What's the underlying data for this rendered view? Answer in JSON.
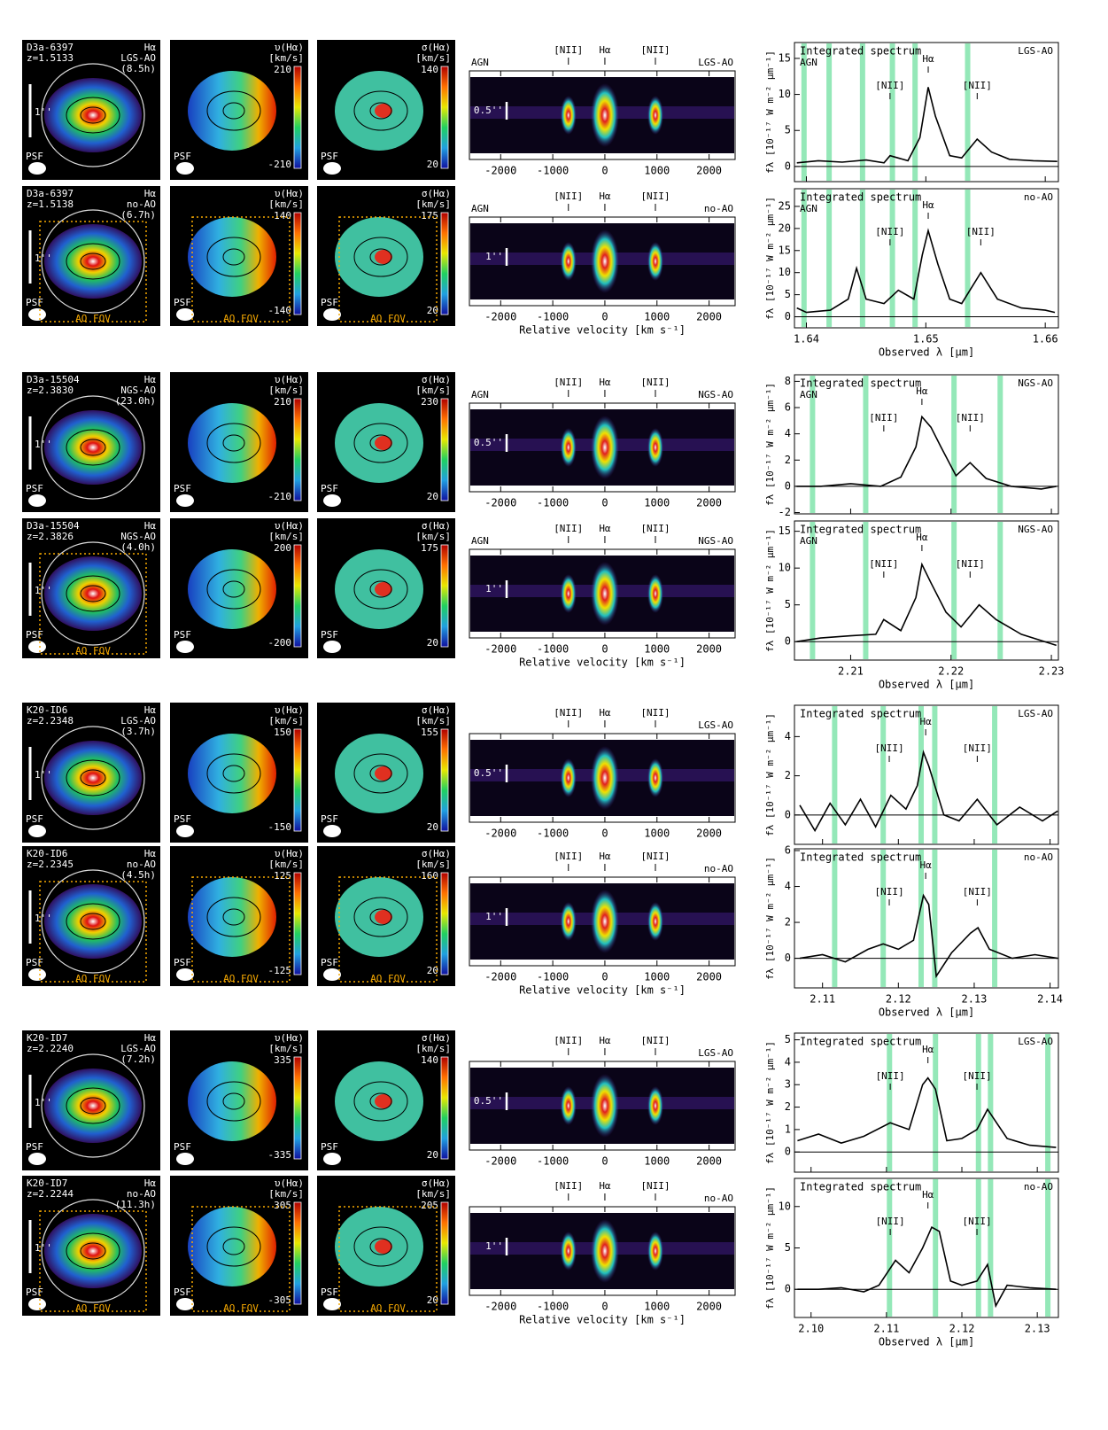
{
  "labels": {
    "pv_x": "Relative velocity  [km s⁻¹]",
    "spec_x": "Observed λ  [μm]",
    "spec_y": "fλ [10⁻¹⁷ W m⁻² μm⁻¹]"
  },
  "pv": {
    "xlim": [
      -2600,
      2500
    ],
    "xticks": [
      -2000,
      -1000,
      0,
      1000,
      2000
    ]
  },
  "groups": [
    {
      "spec_xlim": [
        1.639,
        1.6611
      ],
      "spec_xticks": [
        1.64,
        1.65,
        1.66
      ],
      "rows": [
        {
          "map": {
            "name": "D3a-6397",
            "z": "z=1.5133",
            "line": "Hα",
            "mode": "LGS-AO",
            "time": "(8.5h)",
            "scale": "1''",
            "psf": "PSF"
          },
          "vel": {
            "label": "υ(Hα)",
            "unit": "[km/s]",
            "max": 210,
            "min": -210
          },
          "disp": {
            "label": "σ(Hα)",
            "unit": "[km/s]",
            "max": 140,
            "min": 20
          },
          "pv": {
            "agn": "AGN",
            "mode": "LGS-AO",
            "lines": [
              "[NII]",
              "Hα",
              "[NII]"
            ],
            "line_vel": [
              -700,
              0,
              970
            ],
            "scale": "0.5''"
          },
          "spec": {
            "title": "Integrated spectrum",
            "agn": "AGN",
            "mode": "LGS-AO",
            "ylim": [
              -2.1,
              17.2
            ],
            "yticks": [
              0,
              5,
              10,
              15
            ],
            "lines": [
              "[NII]",
              "Hα",
              "[NII]"
            ],
            "line_x": [
              1.647,
              1.6502,
              1.6543
            ],
            "sky": [
              1.6398,
              1.6419,
              1.6447,
              1.6472,
              1.6491,
              1.6535
            ],
            "x": [
              1.6392,
              1.641,
              1.643,
              1.645,
              1.6465,
              1.647,
              1.6485,
              1.6495,
              1.6502,
              1.6508,
              1.652,
              1.653,
              1.6543,
              1.6555,
              1.657,
              1.659,
              1.661
            ],
            "y": [
              0.5,
              0.8,
              0.6,
              0.9,
              0.5,
              1.5,
              0.8,
              4,
              11,
              7,
              1.5,
              1.2,
              3.8,
              2,
              1,
              0.8,
              0.7
            ]
          }
        },
        {
          "map": {
            "name": "D3a-6397",
            "z": "z=1.5138",
            "line": "Hα",
            "mode": "no-AO",
            "time": "(6.7h)",
            "scale": "1''",
            "psf": "PSF",
            "fov": "AO FOV"
          },
          "vel": {
            "label": "υ(Hα)",
            "unit": "[km/s]",
            "max": 140,
            "min": -140,
            "fov": "AO FOV"
          },
          "disp": {
            "label": "σ(Hα)",
            "unit": "[km/s]",
            "max": 175,
            "min": 20,
            "fov": "AO FOV"
          },
          "pv": {
            "agn": "AGN",
            "mode": "no-AO",
            "lines": [
              "[NII]",
              "Hα",
              "[NII]"
            ],
            "line_vel": [
              -700,
              0,
              970
            ],
            "scale": "1''"
          },
          "spec": {
            "title": "Integrated spectrum",
            "agn": "AGN",
            "mode": "no-AO",
            "ylim": [
              -2.5,
              29
            ],
            "yticks": [
              0,
              5,
              10,
              15,
              20,
              25
            ],
            "lines": [
              "[NII]",
              "Hα",
              "[NII]"
            ],
            "line_x": [
              1.647,
              1.6502,
              1.6546
            ],
            "sky": [
              1.6398,
              1.6419,
              1.6447,
              1.6472,
              1.6491,
              1.6535
            ],
            "x": [
              1.6392,
              1.64,
              1.642,
              1.6435,
              1.6442,
              1.645,
              1.6465,
              1.6477,
              1.649,
              1.6497,
              1.6502,
              1.651,
              1.652,
              1.653,
              1.6546,
              1.656,
              1.658,
              1.66,
              1.6608
            ],
            "y": [
              2,
              1,
              1.5,
              4,
              11,
              4,
              3,
              6,
              4,
              14,
              19.5,
              12,
              4,
              3,
              10,
              4,
              2,
              1.5,
              1
            ]
          }
        }
      ]
    },
    {
      "spec_xlim": [
        2.2044,
        2.2307
      ],
      "spec_xticks": [
        2.21,
        2.22,
        2.23
      ],
      "rows": [
        {
          "map": {
            "name": "D3a-15504",
            "z": "z=2.3830",
            "line": "Hα",
            "mode": "NGS-AO",
            "time": "(23.0h)",
            "scale": "1''",
            "psf": "PSF"
          },
          "vel": {
            "label": "υ(Hα)",
            "unit": "[km/s]",
            "max": 210,
            "min": -210
          },
          "disp": {
            "label": "σ(Hα)",
            "unit": "[km/s]",
            "max": 230,
            "min": 20
          },
          "pv": {
            "agn": "AGN",
            "mode": "NGS-AO",
            "lines": [
              "[NII]",
              "Hα",
              "[NII]"
            ],
            "line_vel": [
              -700,
              0,
              970
            ],
            "scale": "0.5''"
          },
          "spec": {
            "title": "Integrated spectrum",
            "agn": "AGN",
            "mode": "NGS-AO",
            "ylim": [
              -2.1,
              8.5
            ],
            "yticks": [
              -2,
              0,
              2,
              4,
              6,
              8
            ],
            "lines": [
              "[NII]",
              "Hα",
              "[NII]"
            ],
            "line_x": [
              2.2133,
              2.2171,
              2.2219
            ],
            "sky": [
              2.2062,
              2.2115,
              2.2203,
              2.2249
            ],
            "x": [
              2.2046,
              2.207,
              2.21,
              2.213,
              2.215,
              2.2165,
              2.2171,
              2.218,
              2.219,
              2.2205,
              2.2219,
              2.2235,
              2.226,
              2.229,
              2.2305
            ],
            "y": [
              0,
              0,
              0.2,
              0,
              0.7,
              3,
              5.3,
              4.5,
              3,
              0.8,
              1.8,
              0.6,
              0,
              -0.2,
              0
            ]
          }
        },
        {
          "map": {
            "name": "D3a-15504",
            "z": "z=2.3826",
            "line": "Hα",
            "mode": "NGS-AO",
            "time": "(4.0h)",
            "scale": "1''",
            "psf": "PSF",
            "fov": "AO FOV"
          },
          "vel": {
            "label": "υ(Hα)",
            "unit": "[km/s]",
            "max": 200,
            "min": -200
          },
          "disp": {
            "label": "σ(Hα)",
            "unit": "[km/s]",
            "max": 175,
            "min": 20
          },
          "pv": {
            "agn": "AGN",
            "mode": "NGS-AO",
            "lines": [
              "[NII]",
              "Hα",
              "[NII]"
            ],
            "line_vel": [
              -700,
              0,
              970
            ],
            "scale": "1''"
          },
          "spec": {
            "title": "Integrated spectrum",
            "agn": "AGN",
            "mode": "NGS-AO",
            "ylim": [
              -2.5,
              16.4
            ],
            "yticks": [
              0,
              5,
              10,
              15
            ],
            "lines": [
              "[NII]",
              "Hα",
              "[NII]"
            ],
            "line_x": [
              2.2133,
              2.2171,
              2.2219
            ],
            "sky": [
              2.2062,
              2.2115,
              2.2203,
              2.2249
            ],
            "x": [
              2.2046,
              2.207,
              2.21,
              2.2125,
              2.2133,
              2.215,
              2.2165,
              2.2171,
              2.218,
              2.2195,
              2.221,
              2.2228,
              2.2245,
              2.227,
              2.2305
            ],
            "y": [
              0,
              0.5,
              0.8,
              1,
              3,
              1.5,
              6,
              10.5,
              8,
              4,
              2,
              5,
              3,
              1,
              -0.5
            ]
          }
        }
      ]
    },
    {
      "spec_xlim": [
        2.1063,
        2.1411
      ],
      "spec_xticks": [
        2.11,
        2.12,
        2.13,
        2.14
      ],
      "rows": [
        {
          "map": {
            "name": "K20-ID6",
            "z": "z=2.2348",
            "line": "Hα",
            "mode": "LGS-AO",
            "time": "(3.7h)",
            "scale": "1''",
            "psf": "PSF"
          },
          "vel": {
            "label": "υ(Hα)",
            "unit": "[km/s]",
            "max": 150,
            "min": -150
          },
          "disp": {
            "label": "σ(Hα)",
            "unit": "[km/s]",
            "max": 155,
            "min": 20
          },
          "pv": {
            "mode": "LGS-AO",
            "lines": [
              "[NII]",
              "Hα",
              "[NII]"
            ],
            "line_vel": [
              -700,
              0,
              970
            ],
            "scale": "0.5''"
          },
          "spec": {
            "title": "Integrated spectrum",
            "mode": "LGS-AO",
            "ylim": [
              -1.5,
              5.6
            ],
            "yticks": [
              0,
              2,
              4
            ],
            "lines": [
              "[NII]",
              "Hα",
              "[NII]"
            ],
            "line_x": [
              2.1188,
              2.1236,
              2.1304
            ],
            "sky": [
              2.1116,
              2.118,
              2.123,
              2.1248,
              2.1327
            ],
            "x": [
              2.107,
              2.109,
              2.111,
              2.113,
              2.115,
              2.117,
              2.119,
              2.121,
              2.1225,
              2.1233,
              2.124,
              2.126,
              2.128,
              2.1304,
              2.133,
              2.136,
              2.139,
              2.141
            ],
            "y": [
              0.5,
              -0.8,
              0.6,
              -0.5,
              0.8,
              -0.6,
              1,
              0.3,
              1.5,
              3.2,
              2.5,
              0,
              -0.3,
              0.8,
              -0.5,
              0.4,
              -0.3,
              0.2
            ]
          }
        },
        {
          "map": {
            "name": "K20-ID6",
            "z": "z=2.2345",
            "line": "Hα",
            "mode": "no-AO",
            "time": "(4.5h)",
            "scale": "1''",
            "psf": "PSF",
            "fov": "AO FOV"
          },
          "vel": {
            "label": "υ(Hα)",
            "unit": "[km/s]",
            "max": 125,
            "min": -125,
            "fov": "AO FOV"
          },
          "disp": {
            "label": "σ(Hα)",
            "unit": "[km/s]",
            "max": 160,
            "min": 20,
            "fov": "AO FOV"
          },
          "pv": {
            "mode": "no-AO",
            "lines": [
              "[NII]",
              "Hα",
              "[NII]"
            ],
            "line_vel": [
              -700,
              0,
              970
            ],
            "scale": "1''"
          },
          "spec": {
            "title": "Integrated spectrum",
            "mode": "no-AO",
            "ylim": [
              -1.65,
              6.1
            ],
            "yticks": [
              0,
              2,
              4,
              6
            ],
            "lines": [
              "[NII]",
              "Hα",
              "[NII]"
            ],
            "line_x": [
              2.1188,
              2.1236,
              2.1304
            ],
            "sky": [
              2.1116,
              2.118,
              2.123,
              2.1248,
              2.1327
            ],
            "x": [
              2.107,
              2.11,
              2.113,
              2.116,
              2.118,
              2.12,
              2.122,
              2.1233,
              2.124,
              2.125,
              2.127,
              2.1295,
              2.1305,
              2.132,
              2.135,
              2.138,
              2.141
            ],
            "y": [
              0,
              0.2,
              -0.2,
              0.5,
              0.8,
              0.5,
              1,
              3.5,
              3,
              -1,
              0.3,
              1.4,
              1.7,
              0.5,
              0,
              0.2,
              0
            ]
          }
        }
      ]
    },
    {
      "spec_xlim": [
        2.0978,
        2.1328
      ],
      "spec_xticks": [
        {
          "value": 2.1,
          "label": "2.10"
        },
        2.11,
        2.12,
        2.13
      ],
      "rows": [
        {
          "map": {
            "name": "K20-ID7",
            "z": "z=2.2240",
            "line": "Hα",
            "mode": "LGS-AO",
            "time": "(7.2h)",
            "scale": "1''",
            "psf": "PSF"
          },
          "vel": {
            "label": "υ(Hα)",
            "unit": "[km/s]",
            "max": 335,
            "min": -335
          },
          "disp": {
            "label": "σ(Hα)",
            "unit": "[km/s]",
            "max": 140,
            "min": 20
          },
          "pv": {
            "mode": "LGS-AO",
            "lines": [
              "[NII]",
              "Hα",
              "[NII]"
            ],
            "line_vel": [
              -700,
              0,
              970
            ],
            "scale": "0.5''"
          },
          "spec": {
            "title": "Integrated spectrum",
            "mode": "LGS-AO",
            "ylim": [
              -0.9,
              5.3
            ],
            "yticks": [
              0,
              1,
              2,
              3,
              4,
              5
            ],
            "lines": [
              "[NII]",
              "Hα",
              "[NII]"
            ],
            "line_x": [
              2.1105,
              2.1155,
              2.122
            ],
            "sky": [
              2.1104,
              2.1165,
              2.1222,
              2.1238,
              2.1314
            ],
            "x": [
              2.0982,
              2.101,
              2.104,
              2.107,
              2.1105,
              2.113,
              2.1148,
              2.1155,
              2.1165,
              2.118,
              2.12,
              2.122,
              2.1234,
              2.126,
              2.129,
              2.1325
            ],
            "y": [
              0.5,
              0.8,
              0.4,
              0.7,
              1.3,
              1,
              3,
              3.3,
              2.8,
              0.5,
              0.6,
              1,
              1.9,
              0.6,
              0.3,
              0.2
            ]
          }
        },
        {
          "map": {
            "name": "K20-ID7",
            "z": "z=2.2244",
            "line": "Hα",
            "mode": "no-AO",
            "time": "(11.3h)",
            "scale": "1''",
            "psf": "PSF",
            "fov": "AO FOV"
          },
          "vel": {
            "label": "υ(Hα)",
            "unit": "[km/s]",
            "max": 305,
            "min": -305,
            "fov": "AO FOV"
          },
          "disp": {
            "label": "σ(Hα)",
            "unit": "[km/s]",
            "max": 205,
            "min": 20,
            "fov": "AO FOV"
          },
          "pv": {
            "mode": "no-AO",
            "lines": [
              "[NII]",
              "Hα",
              "[NII]"
            ],
            "line_vel": [
              -700,
              0,
              970
            ],
            "scale": "1''"
          },
          "spec": {
            "title": "Integrated spectrum",
            "mode": "no-AO",
            "ylim": [
              -3.4,
              13.4
            ],
            "yticks": [
              0,
              5,
              10
            ],
            "lines": [
              "[NII]",
              "Hα",
              "[NII]"
            ],
            "line_x": [
              2.1105,
              2.1155,
              2.122
            ],
            "sky": [
              2.1104,
              2.1165,
              2.1222,
              2.1238,
              2.1314
            ],
            "x": [
              2.0982,
              2.101,
              2.104,
              2.107,
              2.109,
              2.1112,
              2.113,
              2.1148,
              2.116,
              2.117,
              2.1185,
              2.12,
              2.122,
              2.1234,
              2.1245,
              2.126,
              2.129,
              2.1325
            ],
            "y": [
              0,
              0,
              0.2,
              -0.3,
              0.5,
              3.5,
              2,
              5,
              7.5,
              7,
              1,
              0.5,
              1,
              3,
              -2,
              0.5,
              0.2,
              0
            ]
          }
        }
      ]
    }
  ]
}
